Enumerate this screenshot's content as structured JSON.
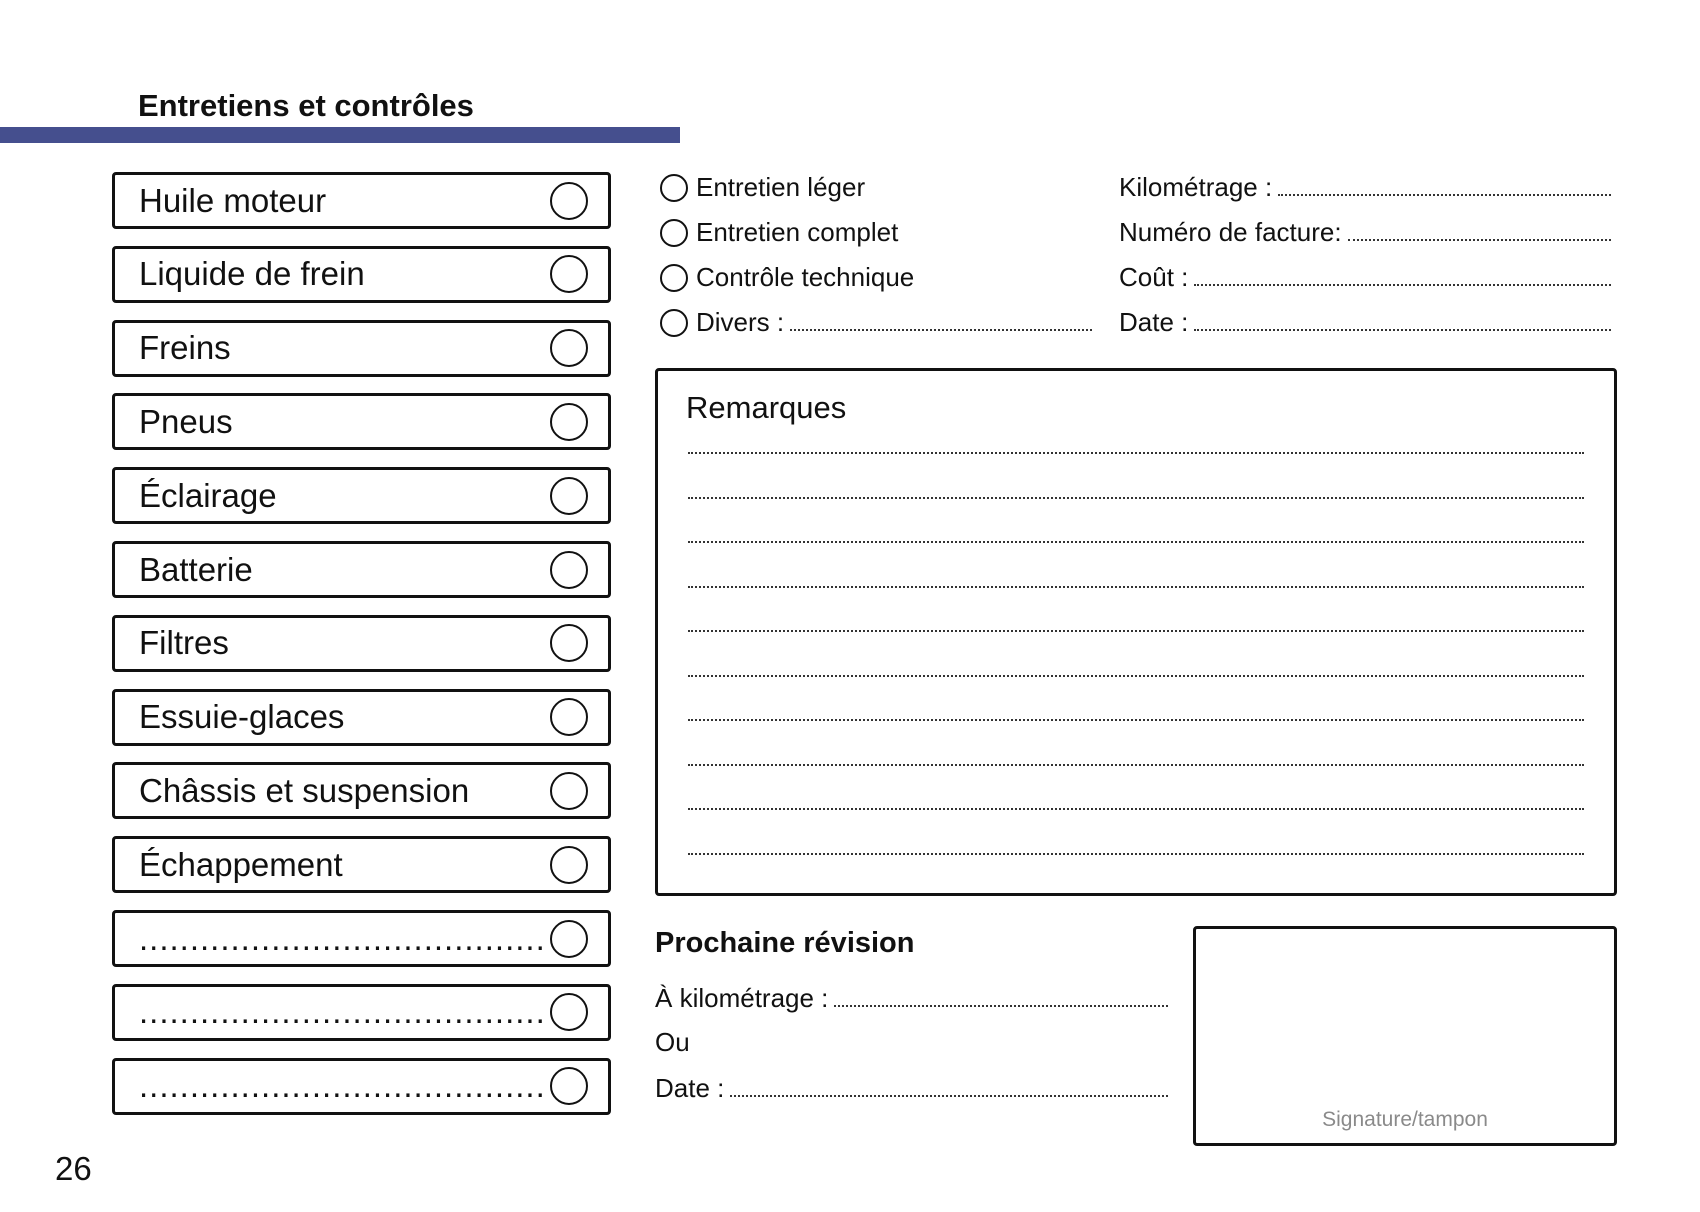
{
  "title": "Entretiens et contrôles",
  "accent_color": "#454f8e",
  "checklist": [
    "Huile moteur",
    "Liquide de frein",
    "Freins",
    "Pneus",
    "Éclairage",
    "Batterie",
    "Filtres",
    "Essuie-glaces",
    "Châssis et suspension",
    "Échappement",
    "........................................",
    "........................................",
    "........................................"
  ],
  "service_types": [
    "Entretien léger",
    "Entretien complet",
    "Contrôle technique",
    "Divers :"
  ],
  "fields": [
    "Kilométrage :",
    "Numéro de facture:",
    "Coût :",
    "Date :"
  ],
  "remarks_title": "Remarques",
  "next_service": {
    "title": "Prochaine révision",
    "mileage": "À kilométrage :",
    "or": "Ou",
    "date": "Date :"
  },
  "signature_label": "Signature/tampon",
  "page_number": "26"
}
